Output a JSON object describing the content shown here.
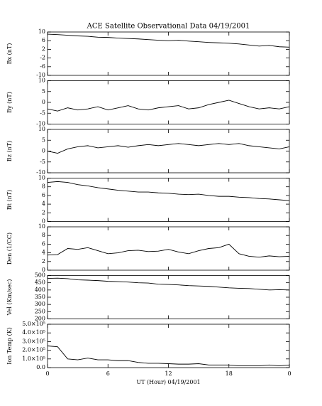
{
  "chart_data": [
    {
      "type": "line",
      "title": "ACE Satellite Observational Data   04/19/2001",
      "ylabel": "Bx (nT)",
      "x": [
        0,
        1,
        2,
        3,
        4,
        5,
        6,
        7,
        8,
        9,
        10,
        11,
        12,
        13,
        14,
        15,
        16,
        17,
        18,
        19,
        20,
        21,
        22,
        23,
        24
      ],
      "values": [
        9,
        8.8,
        8.5,
        8.2,
        8,
        7.6,
        7.5,
        7.2,
        7,
        6.8,
        6.5,
        6.2,
        6,
        6.2,
        5.8,
        5.5,
        5.2,
        5,
        4.8,
        4.5,
        4,
        3.5,
        3.8,
        3.2,
        3
      ],
      "color": "#000000",
      "xlim": [
        0,
        24
      ],
      "xticks": [
        0,
        6,
        12,
        18,
        {
          "value": 24,
          "label": "0"
        }
      ],
      "ylim": [
        -10,
        10
      ],
      "yticks": [
        -10,
        -6,
        -2,
        2,
        6,
        10
      ]
    },
    {
      "type": "line",
      "ylabel": "By (nT)",
      "x": [
        0,
        1,
        2,
        3,
        4,
        5,
        6,
        7,
        8,
        9,
        10,
        11,
        12,
        13,
        14,
        15,
        16,
        17,
        18,
        19,
        20,
        21,
        22,
        23,
        24
      ],
      "values": [
        -3,
        -4,
        -2.5,
        -3.5,
        -3,
        -2,
        -3.5,
        -2.5,
        -1.5,
        -3,
        -3.5,
        -2.5,
        -2,
        -1.5,
        -3,
        -2.5,
        -1,
        0,
        1,
        -0.5,
        -2,
        -3,
        -2.5,
        -3,
        -2
      ],
      "color": "#000000",
      "xlim": [
        0,
        24
      ],
      "xticks": [
        0,
        6,
        12,
        18,
        {
          "value": 24,
          "label": "0"
        }
      ],
      "ylim": [
        -10,
        10
      ],
      "yticks": [
        -10,
        -5,
        0,
        5,
        10
      ]
    },
    {
      "type": "line",
      "ylabel": "Bz (nT)",
      "x": [
        0,
        1,
        2,
        3,
        4,
        5,
        6,
        7,
        8,
        9,
        10,
        11,
        12,
        13,
        14,
        15,
        16,
        17,
        18,
        19,
        20,
        21,
        22,
        23,
        24
      ],
      "values": [
        0,
        -1,
        1,
        2,
        2.5,
        1.5,
        2,
        2.5,
        1.8,
        2.5,
        3,
        2.5,
        3,
        3.5,
        3,
        2.5,
        3,
        3.5,
        3,
        3.5,
        2.5,
        2,
        1.5,
        1,
        2
      ],
      "color": "#000000",
      "xlim": [
        0,
        24
      ],
      "xticks": [
        0,
        6,
        12,
        18,
        {
          "value": 24,
          "label": "0"
        }
      ],
      "ylim": [
        -10,
        10
      ],
      "yticks": [
        -10,
        -5,
        0,
        5,
        10
      ]
    },
    {
      "type": "line",
      "ylabel": "Bt (nT)",
      "x": [
        0,
        1,
        2,
        3,
        4,
        5,
        6,
        7,
        8,
        9,
        10,
        11,
        12,
        13,
        14,
        15,
        16,
        17,
        18,
        19,
        20,
        21,
        22,
        23,
        24
      ],
      "values": [
        9,
        9.2,
        9,
        8.5,
        8.2,
        7.8,
        7.5,
        7.2,
        7,
        6.8,
        6.8,
        6.6,
        6.5,
        6.3,
        6.2,
        6.3,
        6,
        5.8,
        5.8,
        5.6,
        5.5,
        5.3,
        5.2,
        5,
        4.8
      ],
      "color": "#000000",
      "xlim": [
        0,
        24
      ],
      "xticks": [
        0,
        6,
        12,
        18,
        {
          "value": 24,
          "label": "0"
        }
      ],
      "ylim": [
        0,
        10
      ],
      "yticks": [
        0,
        2,
        4,
        6,
        8,
        10
      ]
    },
    {
      "type": "line",
      "ylabel": "Den (1/CC)",
      "x": [
        0,
        1,
        2,
        3,
        4,
        5,
        6,
        7,
        8,
        9,
        10,
        11,
        12,
        13,
        14,
        15,
        16,
        17,
        18,
        19,
        20,
        21,
        22,
        23,
        24
      ],
      "values": [
        3.5,
        3.6,
        5,
        4.8,
        5.2,
        4.5,
        3.8,
        4,
        4.5,
        4.6,
        4.3,
        4.4,
        4.8,
        4.2,
        3.8,
        4.5,
        5,
        5.2,
        6,
        3.8,
        3.2,
        3,
        3.3,
        3.1,
        3.2
      ],
      "color": "#000000",
      "xlim": [
        0,
        24
      ],
      "xticks": [
        0,
        6,
        12,
        18,
        {
          "value": 24,
          "label": "0"
        }
      ],
      "ylim": [
        0,
        10
      ],
      "yticks": [
        0,
        2,
        4,
        6,
        8,
        10
      ]
    },
    {
      "type": "line",
      "ylabel": "Vel (Km/sec)",
      "x": [
        0,
        1,
        2,
        3,
        4,
        5,
        6,
        7,
        8,
        9,
        10,
        11,
        12,
        13,
        14,
        15,
        16,
        17,
        18,
        19,
        20,
        21,
        22,
        23,
        24
      ],
      "values": [
        480,
        482,
        478,
        470,
        468,
        465,
        460,
        458,
        455,
        450,
        448,
        440,
        438,
        435,
        430,
        428,
        425,
        420,
        415,
        412,
        410,
        405,
        400,
        402,
        400
      ],
      "color": "#000000",
      "xlim": [
        0,
        24
      ],
      "xticks": [
        0,
        6,
        12,
        18,
        {
          "value": 24,
          "label": "0"
        }
      ],
      "ylim": [
        200,
        500
      ],
      "yticks": [
        200,
        250,
        300,
        350,
        400,
        450,
        500
      ]
    },
    {
      "type": "line",
      "ylabel": "Ion Temp (K)",
      "xlabel": "UT (Hour)  04/19/2001",
      "x": [
        0,
        1,
        2,
        3,
        4,
        5,
        6,
        7,
        8,
        9,
        10,
        11,
        12,
        13,
        14,
        15,
        16,
        17,
        18,
        19,
        20,
        21,
        22,
        23,
        24
      ],
      "values": [
        250000,
        240000,
        100000,
        90000,
        110000,
        90000,
        90000,
        80000,
        80000,
        60000,
        50000,
        50000,
        45000,
        40000,
        40000,
        45000,
        30000,
        30000,
        30000,
        20000,
        20000,
        20000,
        30000,
        20000,
        30000
      ],
      "color": "#000000",
      "xlim": [
        0,
        24
      ],
      "xticks": [
        0,
        6,
        12,
        18,
        {
          "value": 24,
          "label": "0"
        }
      ],
      "ylim": [
        0,
        500000
      ],
      "yticks": [
        {
          "value": 0,
          "label": "0.0"
        },
        {
          "value": 100000,
          "label": "1.0×10⁵"
        },
        {
          "value": 200000,
          "label": "2.0×10⁵"
        },
        {
          "value": 300000,
          "label": "3.0×10⁵"
        },
        {
          "value": 400000,
          "label": "4.0×10⁵"
        },
        {
          "value": 500000,
          "label": "5.0×10⁵"
        }
      ]
    }
  ]
}
